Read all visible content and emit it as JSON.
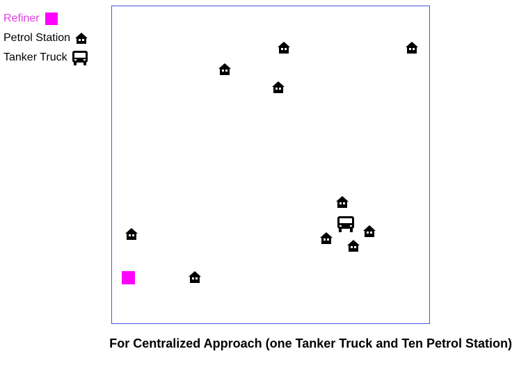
{
  "legend": {
    "refiner_label": "Refiner",
    "station_label": "Petrol Station",
    "truck_label": "Tanker Truck"
  },
  "colors": {
    "refiner": "#ff00ff",
    "refiner_label": "#e040e0",
    "frame": "#5050e0",
    "icon": "#000000"
  },
  "icons": {
    "station": "house-icon",
    "truck": "truck-icon",
    "refiner": "square-icon"
  },
  "caption": "For Centralized Approach (one Tanker Truck and Ten Petrol Station)"
}
